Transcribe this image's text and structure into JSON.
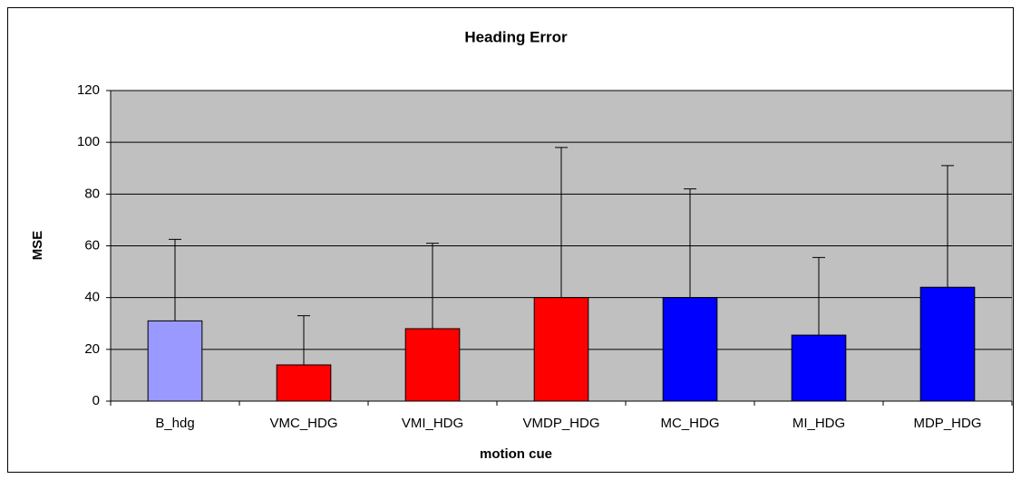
{
  "chart_data": {
    "type": "bar",
    "title": "Heading Error",
    "x_label": "motion cue",
    "y_label": "MSE",
    "categories": [
      "B_hdg",
      "VMC_HDG",
      "VMI_HDG",
      "VMDP_HDG",
      "MC_HDG",
      "MI_HDG",
      "MDP_HDG"
    ],
    "values": [
      31,
      14,
      28,
      40,
      40,
      25.5,
      44
    ],
    "errors": [
      31.5,
      19,
      33,
      58,
      42,
      30,
      47
    ],
    "colors": [
      "#9999ff",
      "#ff0000",
      "#ff0000",
      "#ff0000",
      "#0000ff",
      "#0000ff",
      "#0000ff"
    ],
    "ylim": [
      0,
      120
    ],
    "yticks": [
      0,
      20,
      40,
      60,
      80,
      100,
      120
    ],
    "grid": true
  }
}
